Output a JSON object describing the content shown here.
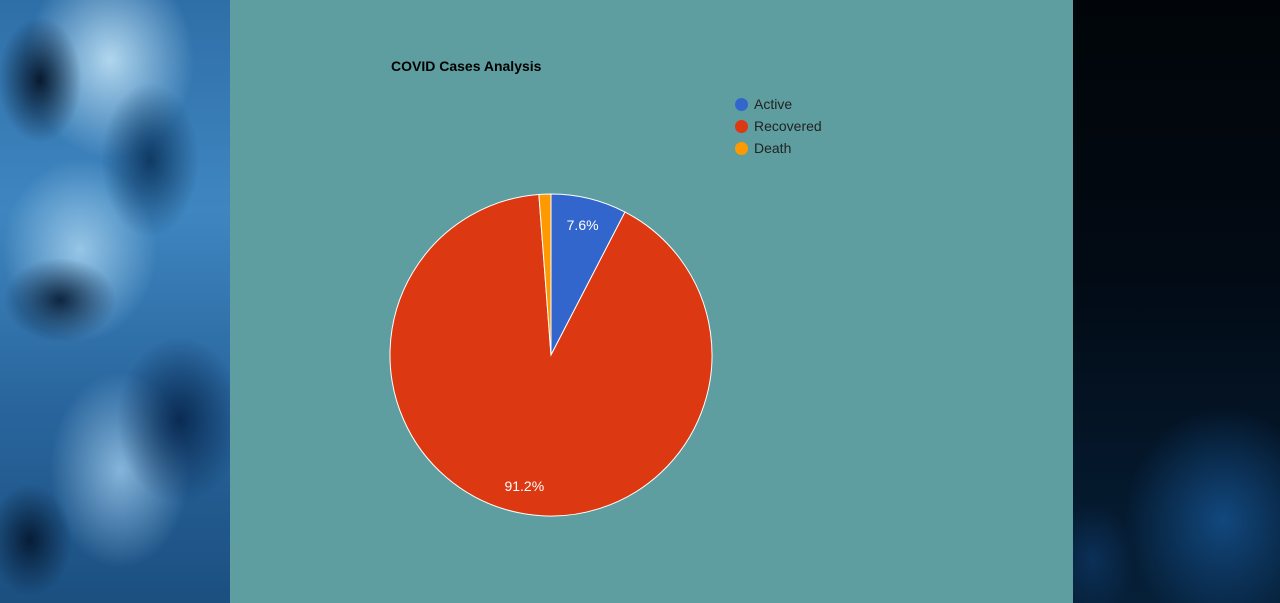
{
  "colors": {
    "panel_background": "#5f9ea0",
    "slice_border": "#ffffff",
    "percent_label": "#ffffff"
  },
  "chart_data": {
    "type": "pie",
    "title": "COVID Cases Analysis",
    "legend_position": "top-right",
    "slices": [
      {
        "label": "Active",
        "value": 7.6,
        "display": "7.6%",
        "color": "#3366cc"
      },
      {
        "label": "Recovered",
        "value": 91.2,
        "display": "91.2%",
        "color": "#dc3912"
      },
      {
        "label": "Death",
        "value": 1.2,
        "display": "",
        "color": "#ff9900"
      }
    ]
  }
}
